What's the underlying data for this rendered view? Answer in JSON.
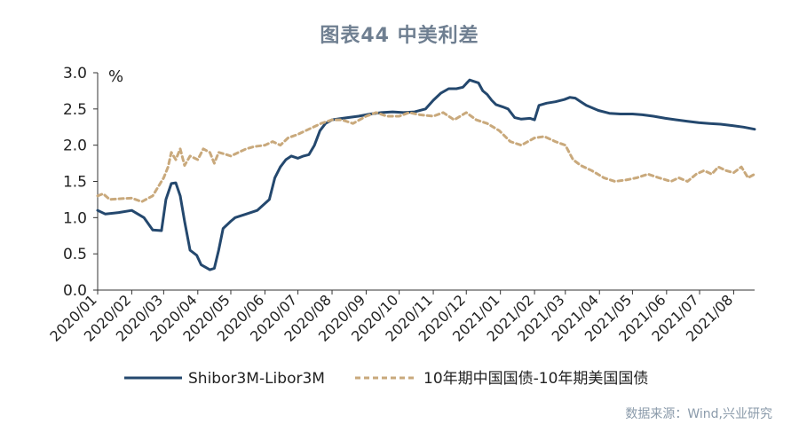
{
  "chart_data": {
    "type": "line",
    "title": "图表44 中美利差",
    "ylabel": "%",
    "ylim": [
      0,
      3
    ],
    "yticks": [
      "0.0",
      "0.5",
      "1.0",
      "1.5",
      "2.0",
      "2.5",
      "3.0"
    ],
    "x_tick_labels": [
      "2020/01",
      "2020/02",
      "2020/03",
      "2020/04",
      "2020/05",
      "2020/06",
      "2020/07",
      "2020/08",
      "2020/09",
      "2020/10",
      "2020/11",
      "2020/12",
      "2021/01",
      "2021/02",
      "2021/03",
      "2021/04",
      "2021/05",
      "2021/06",
      "2021/07",
      "2021/08"
    ],
    "x_range": [
      "2020-01-01",
      "2021-08-20"
    ],
    "legend_position": "bottom",
    "series": [
      {
        "name": "Shibor3M-Libor3M",
        "color": "#24486e",
        "style": "solid",
        "x": [
          "2020-01-01",
          "2020-01-08",
          "2020-01-20",
          "2020-02-01",
          "2020-02-12",
          "2020-02-20",
          "2020-02-28",
          "2020-03-03",
          "2020-03-08",
          "2020-03-12",
          "2020-03-16",
          "2020-03-20",
          "2020-03-25",
          "2020-03-31",
          "2020-04-04",
          "2020-04-12",
          "2020-04-16",
          "2020-04-20",
          "2020-04-24",
          "2020-05-01",
          "2020-05-05",
          "2020-05-15",
          "2020-05-25",
          "2020-06-05",
          "2020-06-10",
          "2020-06-15",
          "2020-06-20",
          "2020-06-25",
          "2020-07-01",
          "2020-07-06",
          "2020-07-11",
          "2020-07-16",
          "2020-07-21",
          "2020-07-26",
          "2020-08-01",
          "2020-08-05",
          "2020-08-15",
          "2020-08-25",
          "2020-09-05",
          "2020-09-15",
          "2020-09-25",
          "2020-10-05",
          "2020-10-15",
          "2020-10-25",
          "2020-11-01",
          "2020-11-08",
          "2020-11-15",
          "2020-11-22",
          "2020-11-28",
          "2020-12-01",
          "2020-12-04",
          "2020-12-08",
          "2020-12-12",
          "2020-12-16",
          "2020-12-20",
          "2020-12-24",
          "2020-12-28",
          "2021-01-03",
          "2021-01-08",
          "2021-01-14",
          "2021-01-20",
          "2021-01-28",
          "2021-02-01",
          "2021-02-05",
          "2021-02-12",
          "2021-02-20",
          "2021-02-28",
          "2021-03-05",
          "2021-03-10",
          "2021-03-15",
          "2021-03-20",
          "2021-03-31",
          "2021-04-10",
          "2021-04-20",
          "2021-05-01",
          "2021-05-10",
          "2021-05-20",
          "2021-05-31",
          "2021-06-10",
          "2021-06-20",
          "2021-06-30",
          "2021-07-10",
          "2021-07-20",
          "2021-07-31",
          "2021-08-10",
          "2021-08-20"
        ],
        "values": [
          1.1,
          1.05,
          1.07,
          1.1,
          1.0,
          0.83,
          0.82,
          1.25,
          1.47,
          1.48,
          1.3,
          0.95,
          0.55,
          0.48,
          0.35,
          0.28,
          0.3,
          0.55,
          0.85,
          0.95,
          1.0,
          1.05,
          1.1,
          1.25,
          1.55,
          1.7,
          1.8,
          1.85,
          1.82,
          1.85,
          1.87,
          2.0,
          2.2,
          2.3,
          2.35,
          2.36,
          2.38,
          2.4,
          2.43,
          2.45,
          2.46,
          2.45,
          2.46,
          2.5,
          2.62,
          2.72,
          2.78,
          2.78,
          2.8,
          2.85,
          2.9,
          2.88,
          2.86,
          2.75,
          2.7,
          2.62,
          2.56,
          2.53,
          2.5,
          2.38,
          2.36,
          2.37,
          2.35,
          2.55,
          2.58,
          2.6,
          2.63,
          2.66,
          2.65,
          2.6,
          2.55,
          2.48,
          2.44,
          2.43,
          2.43,
          2.42,
          2.4,
          2.37,
          2.35,
          2.33,
          2.31,
          2.3,
          2.29,
          2.27,
          2.25,
          2.22
        ]
      },
      {
        "name": "10年期中国国债-10年期美国国债",
        "color": "#c9a97c",
        "style": "dashed",
        "x": [
          "2020-01-01",
          "2020-01-06",
          "2020-01-12",
          "2020-01-20",
          "2020-02-01",
          "2020-02-10",
          "2020-02-20",
          "2020-02-26",
          "2020-03-01",
          "2020-03-05",
          "2020-03-08",
          "2020-03-12",
          "2020-03-16",
          "2020-03-20",
          "2020-03-25",
          "2020-04-01",
          "2020-04-06",
          "2020-04-12",
          "2020-04-16",
          "2020-04-20",
          "2020-04-25",
          "2020-05-01",
          "2020-05-08",
          "2020-05-15",
          "2020-05-22",
          "2020-06-01",
          "2020-06-08",
          "2020-06-15",
          "2020-06-22",
          "2020-07-01",
          "2020-07-08",
          "2020-07-15",
          "2020-07-22",
          "2020-08-01",
          "2020-08-10",
          "2020-08-20",
          "2020-09-01",
          "2020-09-10",
          "2020-09-20",
          "2020-10-01",
          "2020-10-10",
          "2020-10-20",
          "2020-11-01",
          "2020-11-10",
          "2020-11-20",
          "2020-12-01",
          "2020-12-10",
          "2020-12-20",
          "2020-12-31",
          "2021-01-10",
          "2021-01-20",
          "2021-02-01",
          "2021-02-10",
          "2021-02-20",
          "2021-03-01",
          "2021-03-08",
          "2021-03-15",
          "2021-03-25",
          "2021-04-05",
          "2021-04-15",
          "2021-04-25",
          "2021-05-05",
          "2021-05-15",
          "2021-05-25",
          "2021-06-05",
          "2021-06-12",
          "2021-06-20",
          "2021-06-28",
          "2021-07-05",
          "2021-07-12",
          "2021-07-18",
          "2021-07-25",
          "2021-08-01",
          "2021-08-08",
          "2021-08-14",
          "2021-08-20"
        ],
        "values": [
          1.3,
          1.33,
          1.25,
          1.26,
          1.27,
          1.22,
          1.3,
          1.45,
          1.55,
          1.7,
          1.9,
          1.8,
          1.95,
          1.72,
          1.85,
          1.8,
          1.95,
          1.9,
          1.75,
          1.9,
          1.88,
          1.85,
          1.9,
          1.95,
          1.98,
          2.0,
          2.05,
          2.0,
          2.1,
          2.15,
          2.2,
          2.25,
          2.3,
          2.35,
          2.35,
          2.3,
          2.4,
          2.45,
          2.4,
          2.4,
          2.45,
          2.42,
          2.4,
          2.45,
          2.35,
          2.45,
          2.35,
          2.3,
          2.2,
          2.05,
          2.0,
          2.1,
          2.12,
          2.05,
          2.0,
          1.8,
          1.72,
          1.65,
          1.55,
          1.5,
          1.52,
          1.55,
          1.6,
          1.55,
          1.5,
          1.55,
          1.5,
          1.6,
          1.65,
          1.6,
          1.7,
          1.65,
          1.62,
          1.7,
          1.55,
          1.6
        ]
      }
    ]
  },
  "source": "数据来源：Wind,兴业研究"
}
